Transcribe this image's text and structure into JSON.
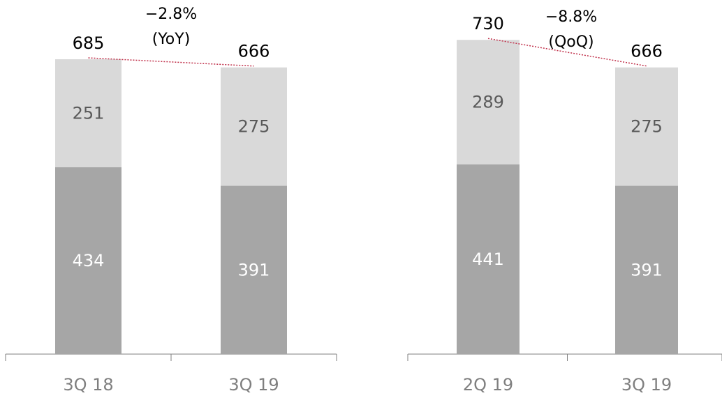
{
  "colors": {
    "bottom_segment": "#a6a6a6",
    "top_segment": "#d9d9d9",
    "trend_line": "#c0304a",
    "axis": "#7f7f7f"
  },
  "chart_data": [
    {
      "type": "bar",
      "stacked": true,
      "categories": [
        "3Q 18",
        "3Q 19"
      ],
      "series": [
        {
          "values": [
            434,
            391
          ]
        },
        {
          "values": [
            251,
            275
          ]
        }
      ],
      "totals": [
        685,
        666
      ],
      "change": {
        "value": "−2.8%",
        "label": "(YoY)"
      },
      "title": "",
      "xlabel": "",
      "ylabel": "",
      "ylim": [
        0,
        740
      ],
      "grid": false,
      "legend": "none"
    },
    {
      "type": "bar",
      "stacked": true,
      "categories": [
        "2Q 19",
        "3Q 19"
      ],
      "series": [
        {
          "values": [
            441,
            391
          ]
        },
        {
          "values": [
            289,
            275
          ]
        }
      ],
      "totals": [
        730,
        666
      ],
      "change": {
        "value": "−8.8%",
        "label": "(QoQ)"
      },
      "title": "",
      "xlabel": "",
      "ylabel": "",
      "ylim": [
        0,
        740
      ],
      "grid": false,
      "legend": "none"
    }
  ]
}
